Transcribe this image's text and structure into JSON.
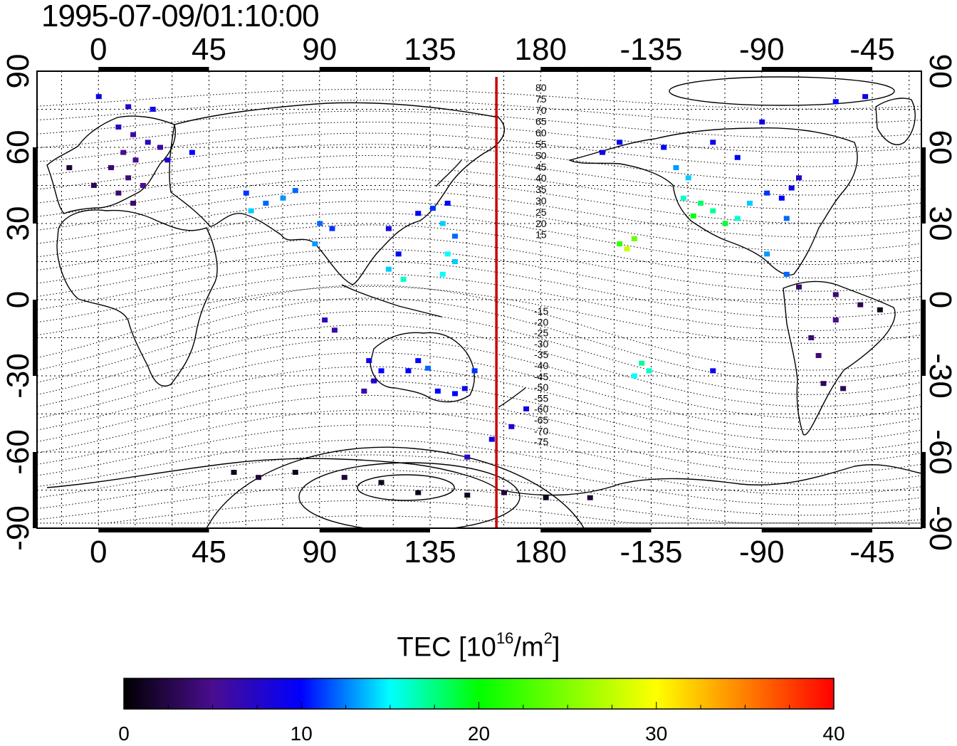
{
  "title": "1995-07-09/01:10:00",
  "map": {
    "lon_ticks": [
      "0",
      "45",
      "90",
      "135",
      "180",
      "-135",
      "-90",
      "-45"
    ],
    "lat_ticks": [
      "90",
      "60",
      "30",
      "0",
      "-30",
      "-60",
      "-90"
    ],
    "contour_labels_north": [
      "80",
      "75",
      "70",
      "65",
      "60",
      "55",
      "50",
      "45",
      "40",
      "35",
      "30",
      "25",
      "20",
      "15"
    ],
    "contour_labels_south": [
      "-15",
      "-20",
      "-25",
      "-30",
      "-35",
      "-40",
      "-45",
      "-50",
      "-55",
      "-60",
      "-65",
      "-70",
      "-75"
    ],
    "meridian_line_lon": 162,
    "meridian_line_color": "#cc0000",
    "colors": {
      "frame": "#000000",
      "contours": "#000000",
      "coast": "#000000"
    }
  },
  "colorbar": {
    "title_main": "TEC  [10",
    "title_exp": "16",
    "title_unit": "/m",
    "title_unit_exp": "2",
    "title_close": "]",
    "min": 0,
    "max": 40,
    "tick_labels": [
      "0",
      "10",
      "20",
      "30",
      "40"
    ],
    "stops": [
      "#000000",
      "#4a0d8f",
      "#0000ff",
      "#00ffff",
      "#00ff00",
      "#ffff00",
      "#ff0000"
    ]
  },
  "tec_observations": [
    {
      "lon": 0,
      "lat": 80,
      "tec": 9
    },
    {
      "lon": 12,
      "lat": 76,
      "tec": 8
    },
    {
      "lon": 22,
      "lat": 75,
      "tec": 9
    },
    {
      "lon": 8,
      "lat": 68,
      "tec": 7
    },
    {
      "lon": 14,
      "lat": 65,
      "tec": 6
    },
    {
      "lon": 20,
      "lat": 62,
      "tec": 7
    },
    {
      "lon": 25,
      "lat": 60,
      "tec": 6
    },
    {
      "lon": 10,
      "lat": 58,
      "tec": 5
    },
    {
      "lon": 15,
      "lat": 55,
      "tec": 5
    },
    {
      "lon": 5,
      "lat": 52,
      "tec": 4
    },
    {
      "lon": 12,
      "lat": 48,
      "tec": 4
    },
    {
      "lon": 18,
      "lat": 45,
      "tec": 5
    },
    {
      "lon": 8,
      "lat": 42,
      "tec": 4
    },
    {
      "lon": 14,
      "lat": 38,
      "tec": 4
    },
    {
      "lon": -12,
      "lat": 52,
      "tec": 2
    },
    {
      "lon": -2,
      "lat": 45,
      "tec": 3
    },
    {
      "lon": 28,
      "lat": 55,
      "tec": 8
    },
    {
      "lon": 38,
      "lat": 58,
      "tec": 10
    },
    {
      "lon": 60,
      "lat": 42,
      "tec": 11
    },
    {
      "lon": 68,
      "lat": 38,
      "tec": 12
    },
    {
      "lon": 75,
      "lat": 40,
      "tec": 13
    },
    {
      "lon": 80,
      "lat": 43,
      "tec": 12
    },
    {
      "lon": 62,
      "lat": 35,
      "tec": 14
    },
    {
      "lon": 90,
      "lat": 30,
      "tec": 12
    },
    {
      "lon": 95,
      "lat": 28,
      "tec": 11
    },
    {
      "lon": 88,
      "lat": 22,
      "tec": 13
    },
    {
      "lon": 118,
      "lat": 28,
      "tec": 9
    },
    {
      "lon": 122,
      "lat": 18,
      "tec": 10
    },
    {
      "lon": 118,
      "lat": 12,
      "tec": 14
    },
    {
      "lon": 124,
      "lat": 8,
      "tec": 16
    },
    {
      "lon": 130,
      "lat": 34,
      "tec": 10
    },
    {
      "lon": 136,
      "lat": 36,
      "tec": 11
    },
    {
      "lon": 142,
      "lat": 38,
      "tec": 10
    },
    {
      "lon": 140,
      "lat": 30,
      "tec": 14
    },
    {
      "lon": 145,
      "lat": 25,
      "tec": 12
    },
    {
      "lon": 142,
      "lat": 18,
      "tec": 15
    },
    {
      "lon": 145,
      "lat": 15,
      "tec": 14
    },
    {
      "lon": 140,
      "lat": 10,
      "tec": 15
    },
    {
      "lon": 92,
      "lat": -8,
      "tec": 7
    },
    {
      "lon": 96,
      "lat": -12,
      "tec": 6
    },
    {
      "lon": 110,
      "lat": -24,
      "tec": 9
    },
    {
      "lon": 115,
      "lat": -28,
      "tec": 10
    },
    {
      "lon": 112,
      "lat": -32,
      "tec": 8
    },
    {
      "lon": 108,
      "lat": -36,
      "tec": 6
    },
    {
      "lon": 130,
      "lat": -24,
      "tec": 10
    },
    {
      "lon": 126,
      "lat": -28,
      "tec": 10
    },
    {
      "lon": 134,
      "lat": -27,
      "tec": 12
    },
    {
      "lon": 138,
      "lat": -36,
      "tec": 10
    },
    {
      "lon": 145,
      "lat": -37,
      "tec": 10
    },
    {
      "lon": 149,
      "lat": -35,
      "tec": 9
    },
    {
      "lon": 153,
      "lat": -28,
      "tec": 11
    },
    {
      "lon": 160,
      "lat": -55,
      "tec": 9
    },
    {
      "lon": 150,
      "lat": -62,
      "tec": 7
    },
    {
      "lon": 174,
      "lat": -43,
      "tec": 9
    },
    {
      "lon": 168,
      "lat": -50,
      "tec": 8
    },
    {
      "lon": 55,
      "lat": -68,
      "tec": 1
    },
    {
      "lon": 65,
      "lat": -70,
      "tec": 2
    },
    {
      "lon": 80,
      "lat": -68,
      "tec": 1
    },
    {
      "lon": 100,
      "lat": -70,
      "tec": 2
    },
    {
      "lon": 115,
      "lat": -72,
      "tec": 1
    },
    {
      "lon": 130,
      "lat": -76,
      "tec": 1
    },
    {
      "lon": 150,
      "lat": -77,
      "tec": 1
    },
    {
      "lon": 165,
      "lat": -76,
      "tec": 2
    },
    {
      "lon": 182,
      "lat": -78,
      "tec": 1
    },
    {
      "lon": 200,
      "lat": -78,
      "tec": 2
    },
    {
      "lon": 212,
      "lat": 22,
      "tec": 22
    },
    {
      "lon": 215,
      "lat": 20,
      "tec": 28
    },
    {
      "lon": 218,
      "lat": 24,
      "tec": 24
    },
    {
      "lon": 221,
      "lat": -25,
      "tec": 17
    },
    {
      "lon": 224,
      "lat": -28,
      "tec": 16
    },
    {
      "lon": 218,
      "lat": -30,
      "tec": 15
    },
    {
      "lon": 205,
      "lat": 58,
      "tec": 9
    },
    {
      "lon": 212,
      "lat": 62,
      "tec": 10
    },
    {
      "lon": 230,
      "lat": 60,
      "tec": 10
    },
    {
      "lon": 235,
      "lat": 52,
      "tec": 13
    },
    {
      "lon": 240,
      "lat": 48,
      "tec": 14
    },
    {
      "lon": 238,
      "lat": 40,
      "tec": 16
    },
    {
      "lon": 245,
      "lat": 38,
      "tec": 18
    },
    {
      "lon": 250,
      "lat": 35,
      "tec": 17
    },
    {
      "lon": 242,
      "lat": 33,
      "tec": 20
    },
    {
      "lon": 255,
      "lat": 30,
      "tec": 19
    },
    {
      "lon": 260,
      "lat": 32,
      "tec": 16
    },
    {
      "lon": 265,
      "lat": 38,
      "tec": 14
    },
    {
      "lon": 272,
      "lat": 42,
      "tec": 11
    },
    {
      "lon": 278,
      "lat": 40,
      "tec": 10
    },
    {
      "lon": 282,
      "lat": 44,
      "tec": 9
    },
    {
      "lon": 285,
      "lat": 48,
      "tec": 8
    },
    {
      "lon": 260,
      "lat": 56,
      "tec": 10
    },
    {
      "lon": 250,
      "lat": 62,
      "tec": 9
    },
    {
      "lon": 270,
      "lat": 70,
      "tec": 9
    },
    {
      "lon": 300,
      "lat": 78,
      "tec": 10
    },
    {
      "lon": 312,
      "lat": 80,
      "tec": 9
    },
    {
      "lon": 280,
      "lat": 32,
      "tec": 12
    },
    {
      "lon": 272,
      "lat": 18,
      "tec": 13
    },
    {
      "lon": 280,
      "lat": 10,
      "tec": 12
    },
    {
      "lon": 285,
      "lat": 5,
      "tec": 4
    },
    {
      "lon": 300,
      "lat": 2,
      "tec": 4
    },
    {
      "lon": 310,
      "lat": -2,
      "tec": 3
    },
    {
      "lon": 318,
      "lat": -4,
      "tec": 1
    },
    {
      "lon": 290,
      "lat": -15,
      "tec": 4
    },
    {
      "lon": 293,
      "lat": -22,
      "tec": 4
    },
    {
      "lon": 295,
      "lat": -33,
      "tec": 3
    },
    {
      "lon": 303,
      "lat": -35,
      "tec": 3
    },
    {
      "lon": 250,
      "lat": -28,
      "tec": 9
    },
    {
      "lon": 300,
      "lat": -8,
      "tec": 5
    }
  ]
}
